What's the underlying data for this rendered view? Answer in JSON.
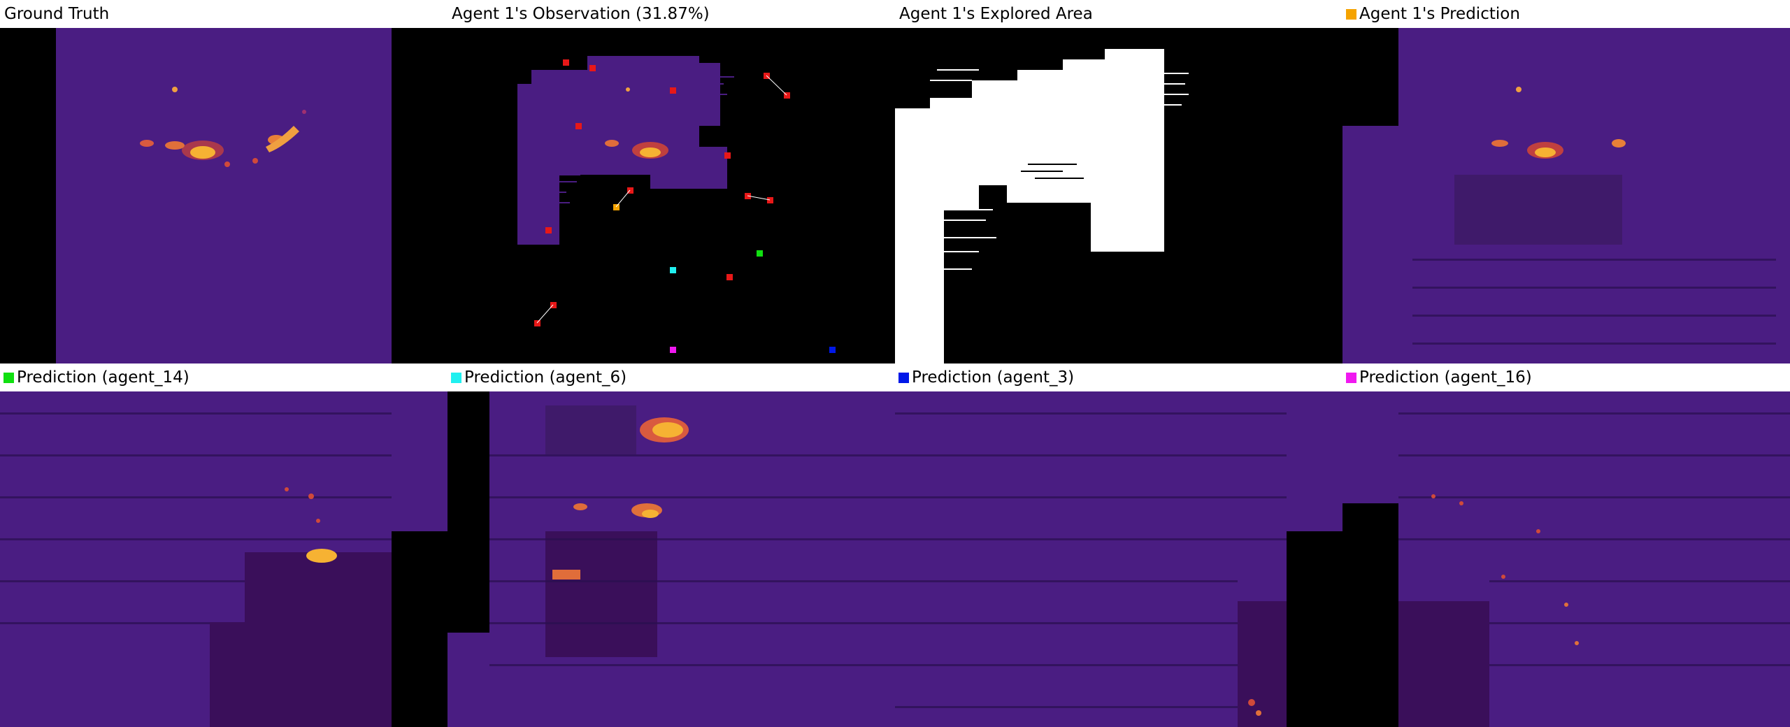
{
  "panels": [
    {
      "title": "Ground Truth"
    },
    {
      "title": "Agent 1's Observation (31.87%)"
    },
    {
      "title": "Agent 1's Explored Area"
    },
    {
      "title": "Agent 1's Prediction",
      "swatch": "#f5a300"
    },
    {
      "title": "Prediction (agent_14)",
      "swatch": "#10e010"
    },
    {
      "title": "Prediction (agent_6)",
      "swatch": "#20f0f0"
    },
    {
      "title": "Prediction (agent_3)",
      "swatch": "#0018e8"
    },
    {
      "title": "Prediction (agent_16)",
      "swatch": "#f018f0"
    }
  ],
  "colors": {
    "background": "#ffffff",
    "map_base": "#4a1d82",
    "map_dark": "#3a0f5a",
    "hot": "#f6b233",
    "mid": "#d24f3e",
    "agent_other": "#e81818"
  }
}
